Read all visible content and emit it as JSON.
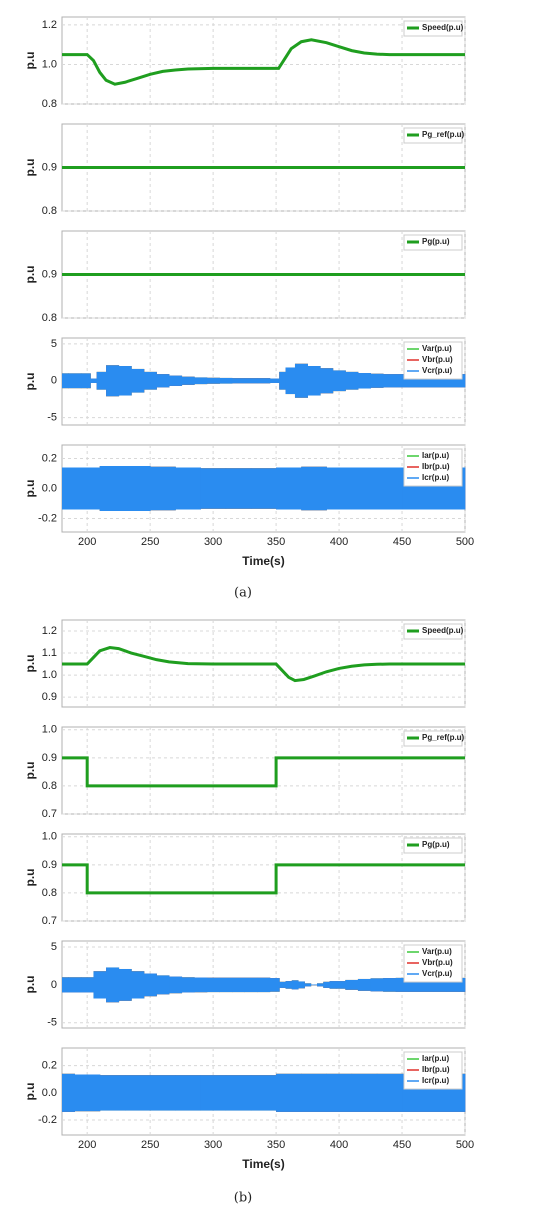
{
  "captions": [
    "(a)",
    "(b)"
  ],
  "chart_data": [
    {
      "type": "line",
      "ylabel": "p.u",
      "xlim": [
        180,
        500
      ],
      "xticks": [
        200,
        250,
        300,
        350,
        400,
        450,
        500
      ],
      "xtick_labels": false,
      "ylim": [
        0.8,
        1.24
      ],
      "yticks": [
        0.8,
        {
          "value": 1,
          "label": "1.0"
        },
        1.2
      ],
      "grid": true,
      "x": [
        180,
        190,
        200,
        205,
        210,
        215,
        222,
        230,
        240,
        250,
        260,
        270,
        280,
        300,
        320,
        340,
        352,
        357,
        362,
        370,
        378,
        390,
        400,
        410,
        420,
        430,
        440,
        460,
        480,
        500
      ],
      "series": [
        {
          "name": "Speed(p.u)",
          "color": "#1f9e1f",
          "values": [
            1.05,
            1.05,
            1.05,
            1.02,
            0.96,
            0.92,
            0.9,
            0.91,
            0.93,
            0.95,
            0.965,
            0.972,
            0.977,
            0.98,
            0.98,
            0.98,
            0.98,
            1.03,
            1.08,
            1.115,
            1.125,
            1.11,
            1.09,
            1.07,
            1.058,
            1.052,
            1.05,
            1.05,
            1.05,
            1.05
          ]
        }
      ]
    },
    {
      "type": "line",
      "ylabel": "p.u",
      "xlim": [
        180,
        500
      ],
      "xticks": [
        200,
        250,
        300,
        350,
        400,
        450,
        500
      ],
      "xtick_labels": false,
      "ylim": [
        0.8,
        1.0
      ],
      "yticks": [
        0.8,
        0.9
      ],
      "grid": true,
      "x": [
        180,
        500
      ],
      "series": [
        {
          "name": "Pg_ref(p.u)",
          "color": "#1f9e1f",
          "values": [
            0.9,
            0.9
          ]
        }
      ]
    },
    {
      "type": "line",
      "ylabel": "p.u",
      "xlim": [
        180,
        500
      ],
      "xticks": [
        200,
        250,
        300,
        350,
        400,
        450,
        500
      ],
      "xtick_labels": false,
      "ylim": [
        0.8,
        1.0
      ],
      "yticks": [
        0.8,
        0.9
      ],
      "grid": true,
      "x": [
        180,
        500
      ],
      "series": [
        {
          "name": "Pg(p.u)",
          "color": "#1f9e1f",
          "values": [
            0.9,
            0.9
          ]
        }
      ]
    },
    {
      "type": "envelope",
      "ylabel": "p.u",
      "xlim": [
        180,
        500
      ],
      "xticks": [
        200,
        250,
        300,
        350,
        400,
        450,
        500
      ],
      "xtick_labels": false,
      "ylim": [
        -6,
        5.8
      ],
      "yticks": [
        -5,
        0,
        5
      ],
      "grid": true,
      "x": [
        180,
        190,
        200,
        205,
        210,
        220,
        230,
        240,
        250,
        260,
        270,
        280,
        290,
        300,
        310,
        320,
        330,
        340,
        350,
        355,
        360,
        370,
        380,
        390,
        400,
        410,
        420,
        430,
        440,
        450,
        460,
        470,
        480,
        490,
        500
      ],
      "series": [
        {
          "name": "Var(p.u)",
          "color": "#3cc83c",
          "values": [
            1,
            1,
            1,
            0.3,
            1.2,
            2.1,
            2,
            1.6,
            1.2,
            0.9,
            0.7,
            0.55,
            0.45,
            0.4,
            0.38,
            0.35,
            0.35,
            0.35,
            0.3,
            1.2,
            1.8,
            2.3,
            2,
            1.7,
            1.4,
            1.2,
            1.05,
            0.95,
            0.9,
            0.9,
            0.9,
            0.9,
            0.9,
            0.9,
            0.9
          ]
        },
        {
          "name": "Vbr(p.u)",
          "color": "#e0302a",
          "values": [
            1,
            1,
            1,
            0.3,
            1.2,
            2.1,
            2,
            1.6,
            1.2,
            0.9,
            0.7,
            0.55,
            0.45,
            0.4,
            0.38,
            0.35,
            0.35,
            0.35,
            0.3,
            1.2,
            1.8,
            2.3,
            2,
            1.7,
            1.4,
            1.2,
            1.05,
            0.95,
            0.9,
            0.9,
            0.9,
            0.9,
            0.9,
            0.9,
            0.9
          ]
        },
        {
          "name": "Vcr(p.u)",
          "color": "#2a8cf0",
          "values": [
            1,
            1,
            1,
            0.3,
            1.2,
            2.1,
            2,
            1.6,
            1.2,
            0.9,
            0.7,
            0.55,
            0.45,
            0.4,
            0.38,
            0.35,
            0.35,
            0.35,
            0.3,
            1.2,
            1.8,
            2.3,
            2,
            1.7,
            1.4,
            1.2,
            1.05,
            0.95,
            0.9,
            0.9,
            0.9,
            0.9,
            0.9,
            0.9,
            0.9
          ]
        }
      ]
    },
    {
      "type": "envelope",
      "ylabel": "p.u",
      "xlabel": "Time(s)",
      "xlim": [
        180,
        500
      ],
      "xticks": [
        200,
        250,
        300,
        350,
        400,
        450,
        500
      ],
      "xtick_labels": true,
      "ylim": [
        -0.29,
        0.29
      ],
      "yticks": [
        -0.2,
        {
          "value": 0,
          "label": "0.0"
        },
        0.2
      ],
      "grid": true,
      "x": [
        180,
        200,
        220,
        240,
        260,
        280,
        300,
        320,
        340,
        360,
        380,
        400,
        420,
        440,
        460,
        480,
        500
      ],
      "series": [
        {
          "name": "Iar(p.u)",
          "color": "#3cc83c",
          "values": [
            0.14,
            0.14,
            0.15,
            0.15,
            0.145,
            0.14,
            0.135,
            0.135,
            0.135,
            0.14,
            0.145,
            0.14,
            0.14,
            0.14,
            0.14,
            0.14,
            0.14
          ]
        },
        {
          "name": "Ibr(p.u)",
          "color": "#e0302a",
          "values": [
            0.14,
            0.14,
            0.15,
            0.15,
            0.145,
            0.14,
            0.135,
            0.135,
            0.135,
            0.14,
            0.145,
            0.14,
            0.14,
            0.14,
            0.14,
            0.14,
            0.14
          ]
        },
        {
          "name": "Icr(p.u)",
          "color": "#2a8cf0",
          "values": [
            0.14,
            0.14,
            0.15,
            0.15,
            0.145,
            0.14,
            0.135,
            0.135,
            0.135,
            0.14,
            0.145,
            0.14,
            0.14,
            0.14,
            0.14,
            0.14,
            0.14
          ]
        }
      ]
    },
    {
      "type": "line",
      "ylabel": "p.u",
      "xlim": [
        180,
        500
      ],
      "xticks": [
        200,
        250,
        300,
        350,
        400,
        450,
        500
      ],
      "xtick_labels": false,
      "ylim": [
        0.855,
        1.25
      ],
      "yticks": [
        0.9,
        {
          "value": 1,
          "label": "1.0"
        },
        1.1,
        1.2
      ],
      "grid": true,
      "x": [
        180,
        190,
        200,
        205,
        210,
        218,
        225,
        235,
        245,
        255,
        265,
        280,
        300,
        320,
        340,
        350,
        355,
        360,
        365,
        372,
        380,
        390,
        400,
        410,
        420,
        430,
        440,
        460,
        480,
        500
      ],
      "series": [
        {
          "name": "Speed(p.u)",
          "color": "#1f9e1f",
          "values": [
            1.05,
            1.05,
            1.05,
            1.08,
            1.11,
            1.125,
            1.12,
            1.1,
            1.085,
            1.07,
            1.06,
            1.052,
            1.05,
            1.05,
            1.05,
            1.05,
            1.02,
            0.99,
            0.975,
            0.98,
            0.995,
            1.015,
            1.03,
            1.04,
            1.046,
            1.049,
            1.05,
            1.05,
            1.05,
            1.05
          ]
        }
      ]
    },
    {
      "type": "line",
      "ylabel": "p.u",
      "xlim": [
        180,
        500
      ],
      "xticks": [
        200,
        250,
        300,
        350,
        400,
        450,
        500
      ],
      "xtick_labels": false,
      "ylim": [
        0.7,
        1.01
      ],
      "yticks": [
        0.7,
        0.8,
        0.9,
        {
          "value": 1,
          "label": "1.0"
        }
      ],
      "grid": true,
      "x": [
        180,
        200,
        200,
        350,
        350,
        500
      ],
      "series": [
        {
          "name": "Pg_ref(p.u)",
          "color": "#1f9e1f",
          "values": [
            0.9,
            0.9,
            0.8,
            0.8,
            0.9,
            0.9
          ]
        }
      ]
    },
    {
      "type": "line",
      "ylabel": "p.u",
      "xlim": [
        180,
        500
      ],
      "xticks": [
        200,
        250,
        300,
        350,
        400,
        450,
        500
      ],
      "xtick_labels": false,
      "ylim": [
        0.7,
        1.01
      ],
      "yticks": [
        0.7,
        0.8,
        0.9,
        {
          "value": 1,
          "label": "1.0"
        }
      ],
      "grid": true,
      "x": [
        180,
        200,
        200,
        350,
        350,
        500
      ],
      "series": [
        {
          "name": "Pg(p.u)",
          "color": "#1f9e1f",
          "values": [
            0.9,
            0.9,
            0.8,
            0.8,
            0.9,
            0.9
          ]
        }
      ]
    },
    {
      "type": "envelope",
      "ylabel": "p.u",
      "xlim": [
        180,
        500
      ],
      "xticks": [
        200,
        250,
        300,
        350,
        400,
        450,
        500
      ],
      "xtick_labels": false,
      "ylim": [
        -5.7,
        5.8
      ],
      "yticks": [
        -5,
        0,
        5
      ],
      "grid": true,
      "x": [
        180,
        190,
        200,
        210,
        220,
        230,
        240,
        250,
        260,
        270,
        280,
        290,
        300,
        310,
        320,
        330,
        340,
        350,
        355,
        360,
        365,
        370,
        375,
        380,
        385,
        390,
        395,
        400,
        410,
        420,
        430,
        440,
        450,
        460,
        470,
        480,
        490,
        500
      ],
      "series": [
        {
          "name": "Var(p.u)",
          "color": "#3cc83c",
          "values": [
            1,
            1,
            1,
            1.8,
            2.3,
            2.1,
            1.8,
            1.5,
            1.25,
            1.1,
            1,
            0.97,
            0.95,
            0.95,
            0.95,
            0.95,
            0.95,
            0.9,
            0.4,
            0.5,
            0.6,
            0.45,
            0.2,
            0.05,
            0.2,
            0.4,
            0.5,
            0.5,
            0.65,
            0.78,
            0.86,
            0.9,
            0.92,
            0.92,
            0.92,
            0.92,
            0.92,
            0.92
          ]
        },
        {
          "name": "Vbr(p.u)",
          "color": "#e0302a",
          "values": [
            1,
            1,
            1,
            1.8,
            2.3,
            2.1,
            1.8,
            1.5,
            1.25,
            1.1,
            1,
            0.97,
            0.95,
            0.95,
            0.95,
            0.95,
            0.95,
            0.9,
            0.4,
            0.5,
            0.6,
            0.45,
            0.2,
            0.05,
            0.2,
            0.4,
            0.5,
            0.5,
            0.65,
            0.78,
            0.86,
            0.9,
            0.92,
            0.92,
            0.92,
            0.92,
            0.92,
            0.92
          ]
        },
        {
          "name": "Vcr(p.u)",
          "color": "#2a8cf0",
          "values": [
            1,
            1,
            1,
            1.8,
            2.3,
            2.1,
            1.8,
            1.5,
            1.25,
            1.1,
            1,
            0.97,
            0.95,
            0.95,
            0.95,
            0.95,
            0.95,
            0.9,
            0.4,
            0.5,
            0.6,
            0.45,
            0.2,
            0.05,
            0.2,
            0.4,
            0.5,
            0.5,
            0.65,
            0.78,
            0.86,
            0.9,
            0.92,
            0.92,
            0.92,
            0.92,
            0.92,
            0.92
          ]
        }
      ]
    },
    {
      "type": "envelope",
      "ylabel": "p.u",
      "xlabel": "Time(s)",
      "xlim": [
        180,
        500
      ],
      "xticks": [
        200,
        250,
        300,
        350,
        400,
        450,
        500
      ],
      "xtick_labels": true,
      "ylim": [
        -0.31,
        0.33
      ],
      "yticks": [
        -0.2,
        {
          "value": 0,
          "label": "0.0"
        },
        0.2
      ],
      "grid": true,
      "x": [
        180,
        200,
        220,
        240,
        260,
        280,
        300,
        320,
        340,
        360,
        380,
        400,
        420,
        440,
        460,
        480,
        500
      ],
      "series": [
        {
          "name": "Iar(p.u)",
          "color": "#3cc83c",
          "values": [
            0.14,
            0.135,
            0.13,
            0.13,
            0.13,
            0.13,
            0.13,
            0.13,
            0.13,
            0.14,
            0.14,
            0.14,
            0.14,
            0.14,
            0.14,
            0.14,
            0.14
          ]
        },
        {
          "name": "Ibr(p.u)",
          "color": "#e0302a",
          "values": [
            0.14,
            0.135,
            0.13,
            0.13,
            0.13,
            0.13,
            0.13,
            0.13,
            0.13,
            0.14,
            0.14,
            0.14,
            0.14,
            0.14,
            0.14,
            0.14,
            0.14
          ]
        },
        {
          "name": "Icr(p.u)",
          "color": "#2a8cf0",
          "values": [
            0.14,
            0.135,
            0.13,
            0.13,
            0.13,
            0.13,
            0.13,
            0.13,
            0.13,
            0.14,
            0.14,
            0.14,
            0.14,
            0.14,
            0.14,
            0.14,
            0.14
          ]
        }
      ]
    }
  ]
}
